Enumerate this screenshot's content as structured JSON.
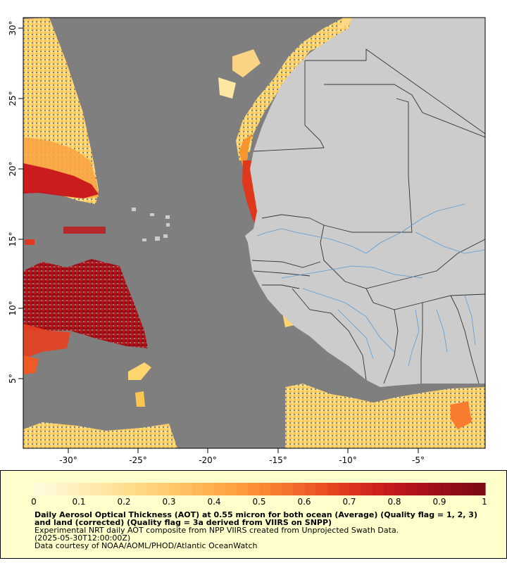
{
  "map": {
    "x_ticks": [
      "-30°",
      "-25°",
      "-20°",
      "-15°",
      "-10°",
      "-5°"
    ],
    "y_ticks": [
      "30°",
      "25°",
      "20°",
      "15°",
      "10°",
      "5°"
    ],
    "colors": {
      "ocean_nodata": "#7f7f7f",
      "land": "#cccccc",
      "rivers": "#5b9bd5",
      "borders": "#333333"
    }
  },
  "colorbar": {
    "ticks": [
      "0",
      "0.1",
      "0.2",
      "0.3",
      "0.4",
      "0.5",
      "0.6",
      "0.7",
      "0.8",
      "0.9",
      "1"
    ],
    "colors": [
      "#fffbe0",
      "#fff2c2",
      "#ffe7a3",
      "#ffd985",
      "#ffc86a",
      "#ffb250",
      "#fd9a3c",
      "#f77c2f",
      "#ee5b25",
      "#e0381f",
      "#cc1e1c",
      "#b0121a",
      "#920d18",
      "#7a0a14"
    ]
  },
  "legend": {
    "title": "Daily Aerosol Optical Thickness (AOT) at 0.55 micron for both ocean (Average) (Quality flag = 1, 2, 3) and land (corrected) (Quality flag = 3a derived from VIIRS on SNPP)",
    "line1": "Experimental NRT daily AOT composite from NPP VIIRS created from Unprojected Swath Data.",
    "line2": "(2025-05-30T12:00:00Z)",
    "line3": "Data courtesy of NOAA/AOML/PHOD/Atlantic OceanWatch"
  }
}
